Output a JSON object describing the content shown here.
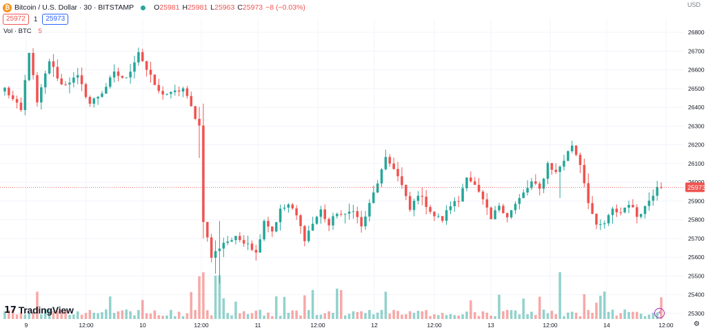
{
  "header": {
    "symbol": "Bitcoin / U.S. Dollar · 30 · BITSTAMP",
    "o_label": "O",
    "o_value": "25981",
    "h_label": "H",
    "h_value": "25981",
    "l_label": "L",
    "l_value": "25963",
    "c_label": "C",
    "c_value": "25973",
    "change": "−8 (−0.03%)"
  },
  "trade": {
    "sell": "25972",
    "spread": "1",
    "buy": "25973"
  },
  "volume_legend": {
    "label": "Vol · BTC",
    "value": "5"
  },
  "currency": "USD",
  "logo_text": "TradingView",
  "logo_mark": "17",
  "last_price_label": "25973",
  "colors": {
    "up": "#26a69a",
    "down": "#ef5350",
    "grid": "#f0f3fa",
    "accent": "#2962ff"
  },
  "icons": {
    "bolt": "lightning-icon",
    "settings": "gear-icon",
    "coin": "bitcoin-icon"
  },
  "chart_data": {
    "type": "candlestick",
    "y_axis": {
      "ylim": [
        25270,
        26870
      ],
      "ticks": [
        25300,
        25400,
        25500,
        25600,
        25700,
        25800,
        25900,
        26000,
        26100,
        26200,
        26300,
        26400,
        26500,
        26600,
        26700,
        26800
      ]
    },
    "x_axis": {
      "ticks": [
        "9",
        "12:00",
        "10",
        "12:00",
        "11",
        "12:00",
        "12",
        "12:00",
        "13",
        "12:00",
        "14",
        "12:00"
      ]
    },
    "last_price": 25973,
    "anchors": [
      [
        0,
        26500
      ],
      [
        4,
        26380
      ],
      [
        6,
        26700
      ],
      [
        8,
        26420
      ],
      [
        11,
        26650
      ],
      [
        14,
        26520
      ],
      [
        18,
        26560
      ],
      [
        21,
        26420
      ],
      [
        24,
        26480
      ],
      [
        27,
        26580
      ],
      [
        30,
        26550
      ],
      [
        33,
        26700
      ],
      [
        35,
        26600
      ],
      [
        38,
        26480
      ],
      [
        41,
        26470
      ],
      [
        44,
        26500
      ],
      [
        46,
        26400
      ],
      [
        48,
        26300
      ],
      [
        49,
        25800
      ],
      [
        51,
        25600
      ],
      [
        54,
        25680
      ],
      [
        57,
        25700
      ],
      [
        60,
        25680
      ],
      [
        62,
        25620
      ],
      [
        64,
        25800
      ],
      [
        66,
        25740
      ],
      [
        68,
        25850
      ],
      [
        70,
        25880
      ],
      [
        72,
        25820
      ],
      [
        74,
        25700
      ],
      [
        76,
        25780
      ],
      [
        78,
        25850
      ],
      [
        80,
        25770
      ],
      [
        82,
        25840
      ],
      [
        84,
        25820
      ],
      [
        86,
        25860
      ],
      [
        88,
        25760
      ],
      [
        90,
        25880
      ],
      [
        92,
        26000
      ],
      [
        94,
        26120
      ],
      [
        96,
        26080
      ],
      [
        98,
        25980
      ],
      [
        100,
        25850
      ],
      [
        102,
        25940
      ],
      [
        104,
        25880
      ],
      [
        106,
        25820
      ],
      [
        108,
        25800
      ],
      [
        110,
        25880
      ],
      [
        112,
        25900
      ],
      [
        114,
        26040
      ],
      [
        116,
        25980
      ],
      [
        118,
        25900
      ],
      [
        120,
        25800
      ],
      [
        122,
        25880
      ],
      [
        124,
        25820
      ],
      [
        126,
        25880
      ],
      [
        128,
        25940
      ],
      [
        130,
        26000
      ],
      [
        132,
        25960
      ],
      [
        134,
        26100
      ],
      [
        136,
        26050
      ],
      [
        138,
        26120
      ],
      [
        140,
        26200
      ],
      [
        142,
        26100
      ],
      [
        144,
        25900
      ],
      [
        146,
        25760
      ],
      [
        148,
        25780
      ],
      [
        150,
        25850
      ],
      [
        152,
        25840
      ],
      [
        154,
        25890
      ],
      [
        156,
        25820
      ],
      [
        158,
        25870
      ],
      [
        160,
        25940
      ],
      [
        162,
        26030
      ]
    ],
    "volume": {
      "label": "Vol · BTC",
      "last": 5
    }
  }
}
